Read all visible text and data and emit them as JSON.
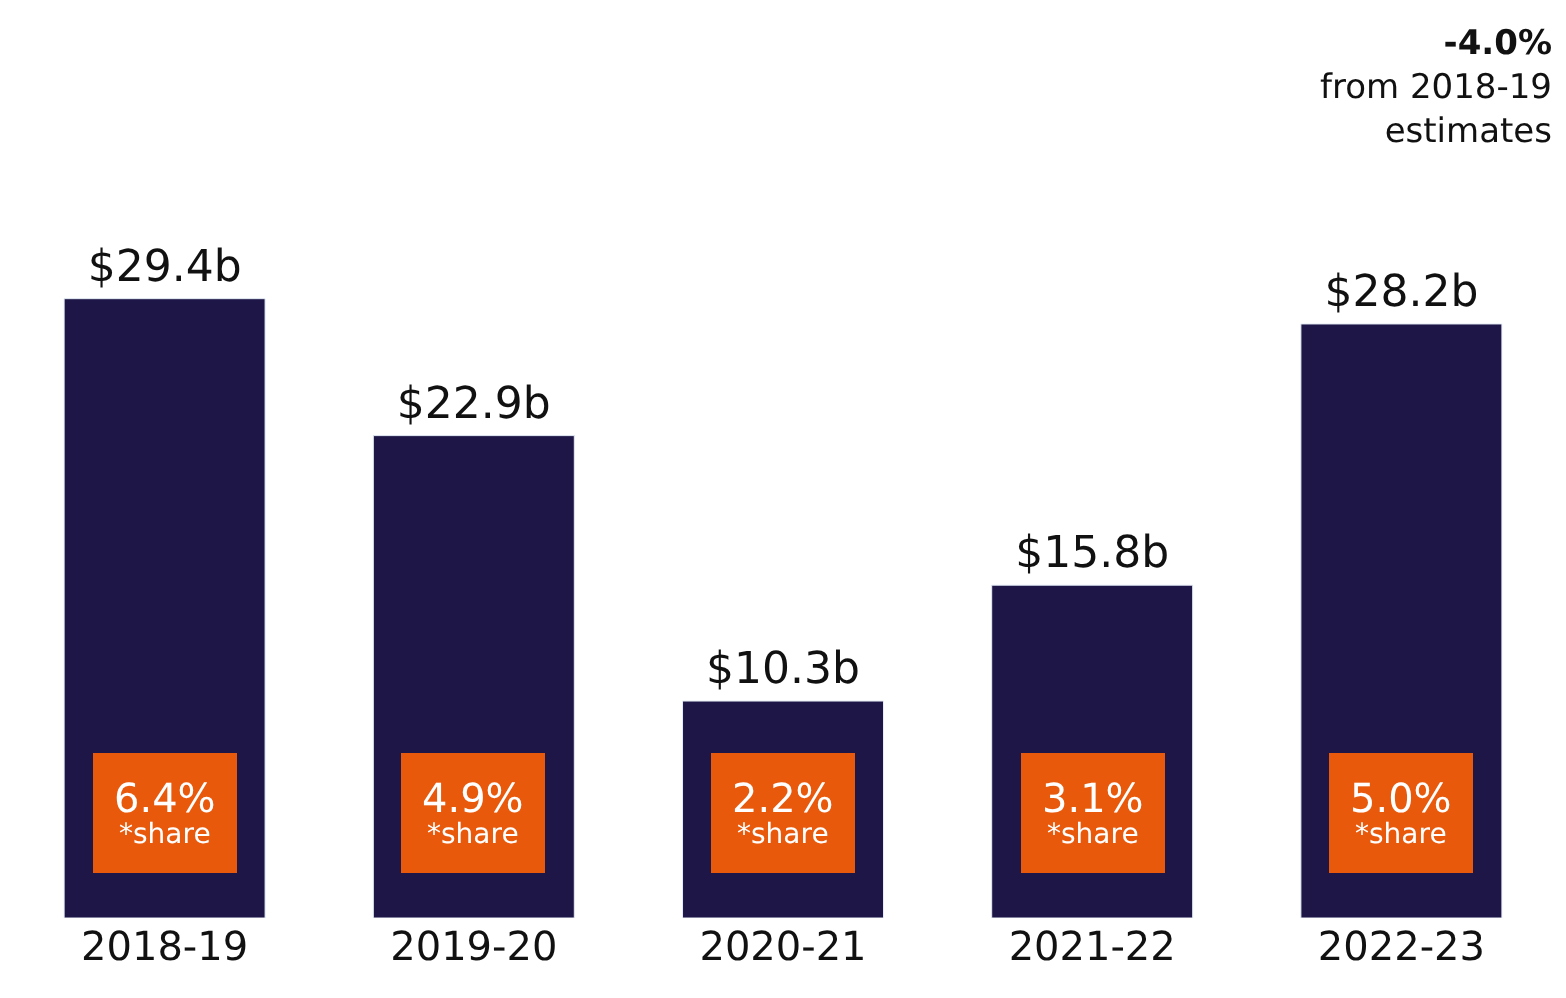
{
  "chart_data": {
    "type": "bar",
    "categories": [
      "2018-19",
      "2019-20",
      "2020-21",
      "2021-22",
      "2022-23"
    ],
    "values": [
      29.4,
      22.9,
      10.3,
      15.8,
      28.2
    ],
    "color": "#1e1646",
    "value_labels": [
      "$29.4b",
      "$22.9b",
      "$10.3b",
      "$15.8b",
      "$28.2b"
    ],
    "annotations": [
      "6.4%\n*share",
      "4.9%\n*share",
      "2.2%\n*share",
      "3.1%\n*share",
      "5.0%\n*share",
      "-4.0%\nfrom 2018-19\nestimates"
    ]
  }
}
